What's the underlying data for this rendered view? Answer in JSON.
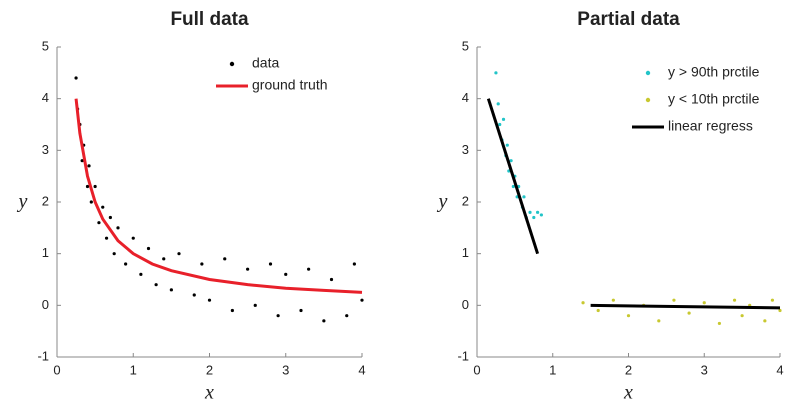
{
  "chart_data": [
    {
      "type": "scatter",
      "title": "Full data",
      "xlabel": "x",
      "ylabel": "y",
      "xlim": [
        0,
        4
      ],
      "ylim": [
        -1,
        5
      ],
      "xticks": [
        0,
        1,
        2,
        3,
        4
      ],
      "yticks": [
        -1,
        0,
        1,
        2,
        3,
        4,
        5
      ],
      "legend": "upper right",
      "series": [
        {
          "name": "data",
          "type": "scatter",
          "color": "#000000",
          "x": [
            0.25,
            0.27,
            0.3,
            0.33,
            0.35,
            0.4,
            0.42,
            0.45,
            0.5,
            0.55,
            0.6,
            0.65,
            0.7,
            0.75,
            0.8,
            0.9,
            1.0,
            1.1,
            1.2,
            1.3,
            1.4,
            1.5,
            1.6,
            1.8,
            1.9,
            2.0,
            2.2,
            2.3,
            2.5,
            2.6,
            2.8,
            2.9,
            3.0,
            3.2,
            3.3,
            3.5,
            3.6,
            3.8,
            3.9,
            4.0
          ],
          "values": [
            4.4,
            3.8,
            3.5,
            2.8,
            3.1,
            2.3,
            2.7,
            2.0,
            2.3,
            1.6,
            1.9,
            1.3,
            1.7,
            1.0,
            1.5,
            0.8,
            1.3,
            0.6,
            1.1,
            0.4,
            0.9,
            0.3,
            1.0,
            0.2,
            0.8,
            0.1,
            0.9,
            -0.1,
            0.7,
            0.0,
            0.8,
            -0.2,
            0.6,
            -0.1,
            0.7,
            -0.3,
            0.5,
            -0.2,
            0.8,
            0.1
          ]
        },
        {
          "name": "ground truth",
          "type": "line",
          "color": "#e8202a",
          "x": [
            0.25,
            0.3,
            0.4,
            0.5,
            0.6,
            0.8,
            1.0,
            1.25,
            1.5,
            2.0,
            2.5,
            3.0,
            3.5,
            4.0
          ],
          "values": [
            4.0,
            3.33,
            2.5,
            2.0,
            1.67,
            1.25,
            1.0,
            0.8,
            0.67,
            0.5,
            0.4,
            0.33,
            0.29,
            0.25
          ]
        }
      ]
    },
    {
      "type": "scatter",
      "title": "Partial data",
      "xlabel": "x",
      "ylabel": "y",
      "xlim": [
        0,
        4
      ],
      "ylim": [
        -1,
        5
      ],
      "xticks": [
        0,
        1,
        2,
        3,
        4
      ],
      "yticks": [
        -1,
        0,
        1,
        2,
        3,
        4,
        5
      ],
      "legend": "upper right",
      "series": [
        {
          "name": "y > 90th prctile",
          "type": "scatter",
          "color": "#22c4c8",
          "x": [
            0.25,
            0.28,
            0.3,
            0.33,
            0.35,
            0.38,
            0.4,
            0.42,
            0.45,
            0.48,
            0.5,
            0.53,
            0.55,
            0.6,
            0.62,
            0.65,
            0.7,
            0.75,
            0.8,
            0.85
          ],
          "values": [
            4.5,
            3.9,
            3.5,
            3.2,
            3.6,
            2.9,
            3.1,
            2.6,
            2.8,
            2.3,
            2.5,
            2.1,
            2.3,
            1.9,
            2.1,
            1.7,
            1.8,
            1.7,
            1.8,
            1.75
          ]
        },
        {
          "name": "y < 10th prctile",
          "type": "scatter",
          "color": "#c8c830",
          "x": [
            1.4,
            1.6,
            1.8,
            2.0,
            2.2,
            2.4,
            2.6,
            2.8,
            3.0,
            3.2,
            3.4,
            3.5,
            3.6,
            3.8,
            3.9,
            4.0
          ],
          "values": [
            0.05,
            -0.1,
            0.1,
            -0.2,
            0.0,
            -0.3,
            0.1,
            -0.15,
            0.05,
            -0.35,
            0.1,
            -0.2,
            0.0,
            -0.3,
            0.1,
            -0.1
          ]
        },
        {
          "name": "linear regress",
          "type": "line",
          "color": "#000000",
          "x": [
            0.15,
            0.8
          ],
          "values": [
            4.0,
            1.0
          ]
        },
        {
          "type": "line",
          "color": "#000000",
          "x": [
            1.5,
            4.0
          ],
          "values": [
            0.0,
            -0.05
          ]
        }
      ]
    }
  ]
}
